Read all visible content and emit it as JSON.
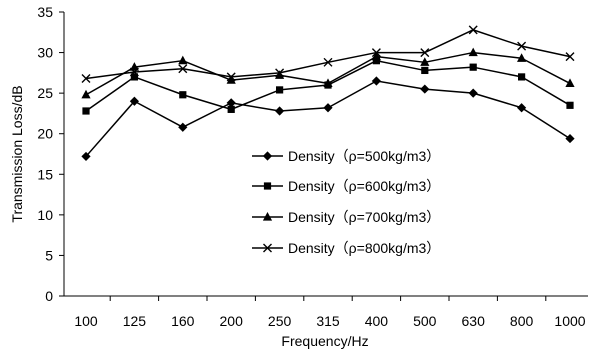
{
  "chart_data": {
    "type": "line",
    "title": "",
    "xlabel": "Frequency/Hz",
    "ylabel": "Transmission Loss/dB",
    "categories": [
      "100",
      "125",
      "160",
      "200",
      "250",
      "315",
      "400",
      "500",
      "630",
      "800",
      "1000"
    ],
    "ylim": [
      0,
      35
    ],
    "yticks": [
      0,
      5,
      10,
      15,
      20,
      25,
      30,
      35
    ],
    "grid": false,
    "legend": "inside-center",
    "series": [
      {
        "name": "Density（ρ=500kg/m3）",
        "marker": "diamond",
        "color": "#000000",
        "values": [
          17.2,
          24.0,
          20.8,
          23.8,
          22.8,
          23.2,
          26.5,
          25.5,
          25.0,
          23.2,
          19.4
        ]
      },
      {
        "name": "Density（ρ=600kg/m3）",
        "marker": "square",
        "color": "#000000",
        "values": [
          22.8,
          27.0,
          24.8,
          23.0,
          25.4,
          26.0,
          29.0,
          27.8,
          28.2,
          27.0,
          23.5
        ]
      },
      {
        "name": "Density（ρ=700kg/m3）",
        "marker": "triangle",
        "color": "#000000",
        "values": [
          24.8,
          28.2,
          29.0,
          26.6,
          27.2,
          26.2,
          29.5,
          28.8,
          30.0,
          29.3,
          26.2
        ]
      },
      {
        "name": "Density（ρ=800kg/m3）",
        "marker": "x",
        "color": "#000000",
        "values": [
          26.8,
          27.6,
          28.0,
          27.0,
          27.5,
          28.8,
          30.0,
          30.0,
          32.8,
          30.8,
          29.5
        ]
      }
    ]
  }
}
